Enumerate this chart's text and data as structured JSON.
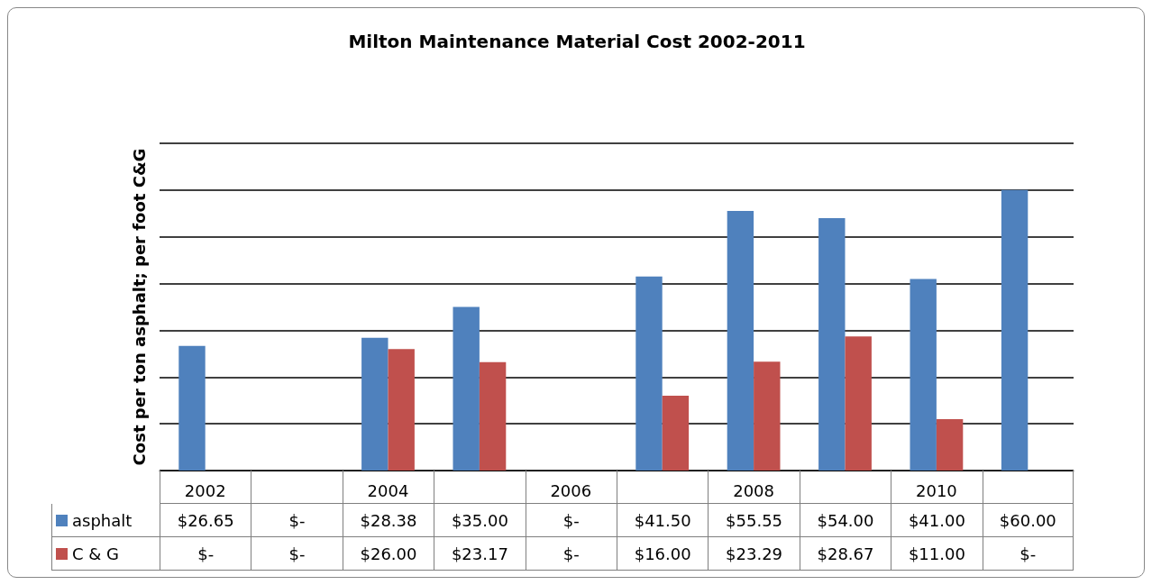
{
  "chart_data": {
    "type": "bar",
    "title": "Milton Maintenance Material Cost 2002-2011",
    "ylabel": "Cost per ton asphalt; per foot C&G",
    "categories": [
      "2002",
      null,
      "2004",
      null,
      "2006",
      null,
      "2008",
      null,
      "2010",
      null
    ],
    "series": [
      {
        "name": "asphalt",
        "color": "#4f81bd",
        "values": [
          26.65,
          0,
          28.38,
          35.0,
          0,
          41.5,
          55.55,
          54.0,
          41.0,
          60.0
        ],
        "value_labels": [
          "$26.65",
          "$-",
          "$28.38",
          "$35.00",
          "$-",
          "$41.50",
          "$55.55",
          "$54.00",
          "$41.00",
          "$60.00"
        ]
      },
      {
        "name": "C & G",
        "color": "#c0504d",
        "values": [
          0,
          0,
          26.0,
          23.17,
          0,
          16.0,
          23.29,
          28.67,
          11.0,
          0
        ],
        "value_labels": [
          "$-",
          "$-",
          "$26.00",
          "$23.17",
          "$-",
          "$16.00",
          "$23.29",
          "$28.67",
          "$11.00",
          "$-"
        ]
      }
    ],
    "ylim": [
      0,
      70
    ],
    "yticks": [
      {
        "value": 0,
        "label": null
      },
      {
        "value": 10,
        "label": null
      },
      {
        "value": 20,
        "label": null
      },
      {
        "value": 30,
        "label": null
      },
      {
        "value": 40,
        "label": null
      },
      {
        "value": 50,
        "label": null
      },
      {
        "value": 60,
        "label": null
      },
      {
        "value": 70,
        "label": null
      }
    ],
    "grid": "y",
    "legend": "bottom"
  }
}
